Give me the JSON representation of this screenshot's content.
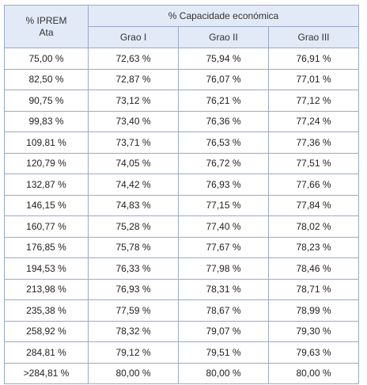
{
  "table": {
    "header": {
      "iprem_line1": "% IPREM",
      "iprem_line2": "Ata",
      "capacity": "% Capacidade económica",
      "grades": [
        "Grao I",
        "Grao II",
        "Grao III"
      ]
    },
    "rows": [
      [
        "75,00 %",
        "72,63 %",
        "75,94 %",
        "76,91 %"
      ],
      [
        "82,50 %",
        "72,87 %",
        "76,07 %",
        "77,01 %"
      ],
      [
        "90,75 %",
        "73,12 %",
        "76,21 %",
        "77,12 %"
      ],
      [
        "99,83 %",
        "73,40 %",
        "76,36 %",
        "77,24 %"
      ],
      [
        "109,81 %",
        "73,71 %",
        "76,53 %",
        "77,36 %"
      ],
      [
        "120,79 %",
        "74,05 %",
        "76,72 %",
        "77,51 %"
      ],
      [
        "132,87 %",
        "74,42 %",
        "76,93 %",
        "77,66 %"
      ],
      [
        "146,15 %",
        "74,83 %",
        "77,15 %",
        "77,84 %"
      ],
      [
        "160,77 %",
        "75,28 %",
        "77,40 %",
        "78,02 %"
      ],
      [
        "176,85 %",
        "75,78 %",
        "77,67 %",
        "78,23 %"
      ],
      [
        "194,53 %",
        "76,33 %",
        "77,98 %",
        "78,46 %"
      ],
      [
        "213,98 %",
        "76,93 %",
        "78,31 %",
        "78,71 %"
      ],
      [
        "235,38 %",
        "77,59 %",
        "78,67 %",
        "78,99 %"
      ],
      [
        "258,92 %",
        "78,32 %",
        "79,07 %",
        "79,30 %"
      ],
      [
        "284,81 %",
        "79,12 %",
        "79,51 %",
        "79,63 %"
      ],
      [
        ">284,81 %",
        "80,00 %",
        "80,00 %",
        "80,00 %"
      ]
    ]
  }
}
